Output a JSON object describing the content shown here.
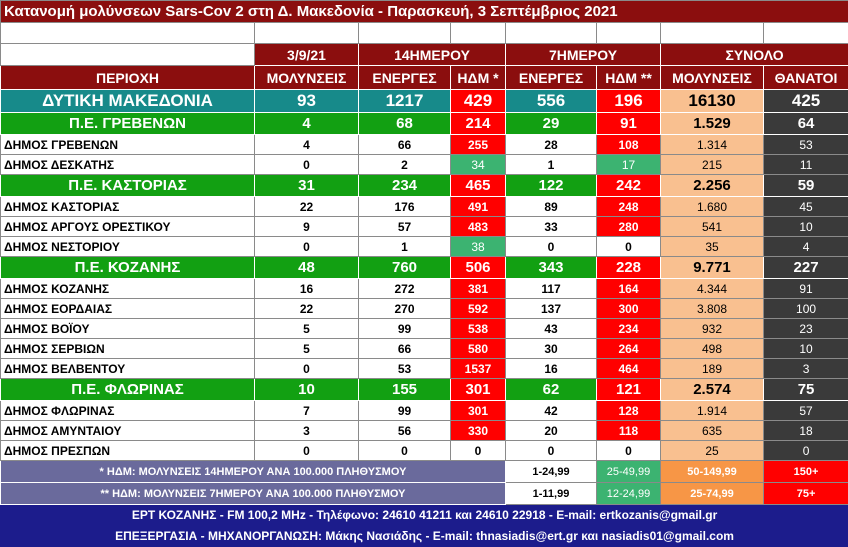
{
  "header": {
    "title": "Κατανομή μολύνσεων Sars-Cov 2 στη Δ. Μακεδονία - Παρασκευή, 3 Σεπτέμβριος 2021",
    "row1": [
      "3/9/21",
      "14ΗΜΕΡΟΥ",
      "7ΗΜΕΡΟΥ",
      "ΣΥΝΟΛΟ"
    ],
    "row2": [
      "ΠΕΡΙΟΧΗ",
      "ΜΟΛΥΝΣΕΙΣ",
      "ΕΝΕΡΓΕΣ",
      "ΗΔΜ *",
      "ΕΝΕΡΓΕΣ",
      "ΗΔΜ **",
      "ΜΟΛΥΝΣΕΙΣ",
      "ΘΑΝΑΤΟΙ"
    ]
  },
  "table": {
    "rows": [
      [
        "ΔΥΤΙΚΗ ΜΑΚΕΔΟΝΙΑ",
        "93",
        "1217",
        "429",
        "556",
        "196",
        "16130",
        "425"
      ],
      [
        "Π.Ε. ΓΡΕΒΕΝΩΝ",
        "4",
        "68",
        "214",
        "29",
        "91",
        "1.529",
        "64"
      ],
      [
        "ΔΗΜΟΣ ΓΡΕΒΕΝΩΝ",
        "4",
        "66",
        "255",
        "28",
        "108",
        "1.314",
        "53"
      ],
      [
        "ΔΗΜΟΣ ΔΕΣΚΑΤΗΣ",
        "0",
        "2",
        "34",
        "1",
        "17",
        "215",
        "11"
      ],
      [
        "Π.Ε. ΚΑΣΤΟΡΙΑΣ",
        "31",
        "234",
        "465",
        "122",
        "242",
        "2.256",
        "59"
      ],
      [
        "ΔΗΜΟΣ ΚΑΣΤΟΡΙΑΣ",
        "22",
        "176",
        "491",
        "89",
        "248",
        "1.680",
        "45"
      ],
      [
        "ΔΗΜΟΣ ΑΡΓΟΥΣ ΟΡΕΣΤΙΚΟΥ",
        "9",
        "57",
        "483",
        "33",
        "280",
        "541",
        "10"
      ],
      [
        "ΔΗΜΟΣ ΝΕΣΤΟΡΙΟΥ",
        "0",
        "1",
        "38",
        "0",
        "0",
        "35",
        "4"
      ],
      [
        "Π.Ε. ΚΟΖΑΝΗΣ",
        "48",
        "760",
        "506",
        "343",
        "228",
        "9.771",
        "227"
      ],
      [
        "ΔΗΜΟΣ ΚΟΖΑΝΗΣ",
        "16",
        "272",
        "381",
        "117",
        "164",
        "4.344",
        "91"
      ],
      [
        "ΔΗΜΟΣ ΕΟΡΔΑΙΑΣ",
        "22",
        "270",
        "592",
        "137",
        "300",
        "3.808",
        "100"
      ],
      [
        "ΔΗΜΟΣ ΒΟΪΟΥ",
        "5",
        "99",
        "538",
        "43",
        "234",
        "932",
        "23"
      ],
      [
        "ΔΗΜΟΣ ΣΕΡΒΙΩΝ",
        "5",
        "66",
        "580",
        "30",
        "264",
        "498",
        "10"
      ],
      [
        "ΔΗΜΟΣ ΒΕΛΒΕΝΤΟΥ",
        "0",
        "53",
        "1537",
        "16",
        "464",
        "189",
        "3"
      ],
      [
        "Π.Ε. ΦΛΩΡΙΝΑΣ",
        "10",
        "155",
        "301",
        "62",
        "121",
        "2.574",
        "75"
      ],
      [
        "ΔΗΜΟΣ ΦΛΩΡΙΝΑΣ",
        "7",
        "99",
        "301",
        "42",
        "128",
        "1.914",
        "57"
      ],
      [
        "ΔΗΜΟΣ ΑΜΥΝΤΑΙΟΥ",
        "3",
        "56",
        "330",
        "20",
        "118",
        "635",
        "18"
      ],
      [
        "ΔΗΜΟΣ ΠΡΕΣΠΩΝ",
        "0",
        "0",
        "0",
        "0",
        "0",
        "25",
        "0"
      ]
    ]
  },
  "legend": [
    {
      "text": "* ΗΔΜ: ΜΟΛΥΝΣΕΙΣ 14ΗΜΕΡΟΥ ΑΝΑ 100.000 ΠΛΗΘΥΣΜΟΥ",
      "ranges": [
        "1-24,99",
        "25-49,99",
        "50-149,99",
        "150+"
      ]
    },
    {
      "text": "** ΗΔΜ: ΜΟΛΥΝΣΕΙΣ 7ΗΜΕΡΟΥ ΑΝΑ 100.000 ΠΛΗΘΥΣΜΟΥ",
      "ranges": [
        "1-11,99",
        "12-24,99",
        "25-74,99",
        "75+"
      ]
    }
  ],
  "footer": [
    "ΕΡΤ ΚΟΖΑΝΗΣ - FM 100,2 MHz - Τηλέφωνο:  24610 41211 και 24610 22918 - E-mail: ertkozanis@gmail.gr",
    "ΕΠΕΞΕΡΓΑΣΙΑ  -  ΜΗΧΑΝΟΡΓΑΝΩΣΗ: Μάκης Νασιάδης  -  E-mail: thnasiadis@ert.gr και nasiadis01@gmail.com"
  ]
}
